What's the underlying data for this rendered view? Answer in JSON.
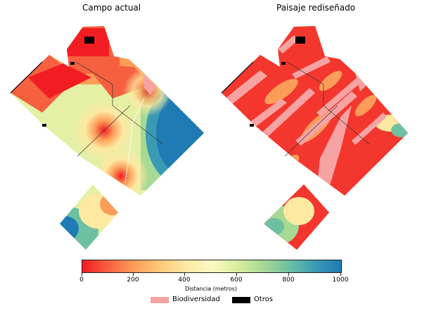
{
  "panels": [
    {
      "title": "Campo actual"
    },
    {
      "title": "Paisaje rediseñado"
    }
  ],
  "colorbar": {
    "title": "Distancia (metros)",
    "ticks": [
      "0",
      "200",
      "400",
      "600",
      "800",
      "1000"
    ],
    "range": [
      0,
      1000
    ],
    "colors": [
      "#f21d23",
      "#fb9d59",
      "#fde9a2",
      "#fbf8c4",
      "#a6d994",
      "#1f7bb4"
    ]
  },
  "legend": [
    {
      "label": "Biodiversidad",
      "color": "#f7a3a3"
    },
    {
      "label": "Otros",
      "color": "#000000"
    }
  ]
}
